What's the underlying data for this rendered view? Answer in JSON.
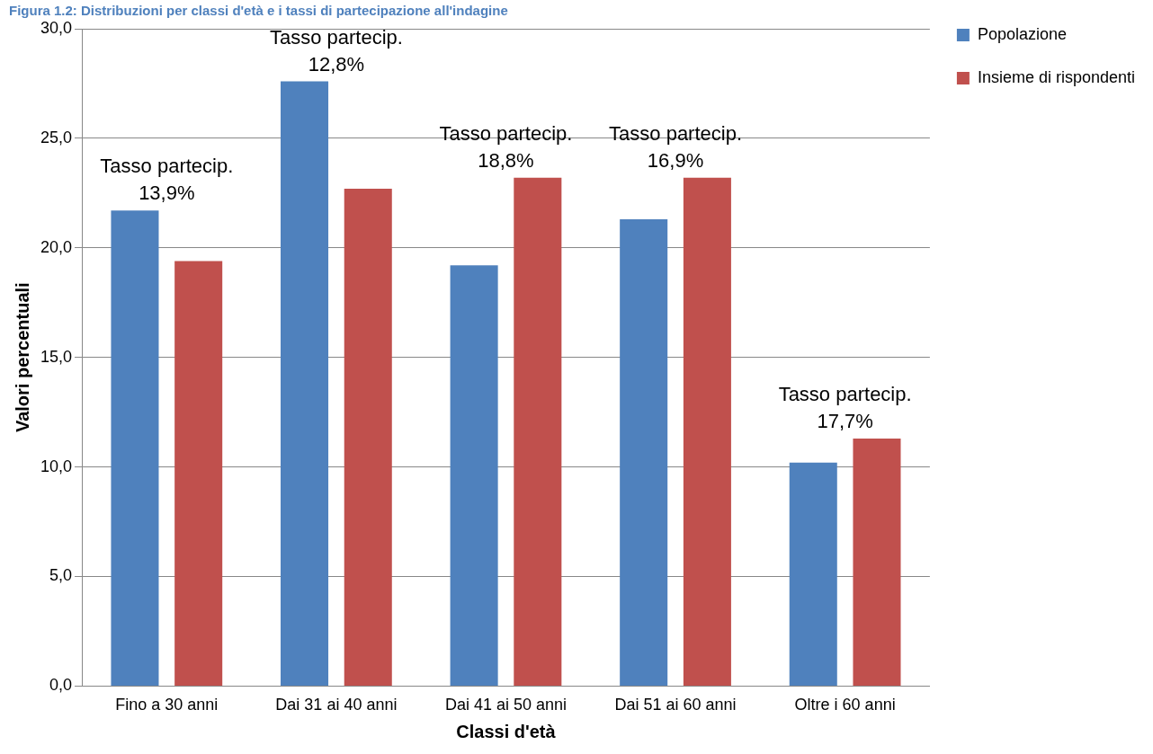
{
  "chart_data": {
    "type": "bar",
    "title": "Figura 1.2: Distribuzioni per classi d'età e i tassi di partecipazione all'indagine",
    "xlabel": "Classi d'età",
    "ylabel": "Valori percentuali",
    "categories": [
      "Fino a 30 anni",
      "Dai 31 ai 40 anni",
      "Dai 41 ai 50 anni",
      "Dai 51 ai 60 anni",
      "Oltre i 60 anni"
    ],
    "series": [
      {
        "name": "Popolazione",
        "color": "#4f81bd",
        "values": [
          21.7,
          27.6,
          19.2,
          21.3,
          10.2
        ]
      },
      {
        "name": "Insieme di rispondenti",
        "color": "#c0504d",
        "values": [
          19.4,
          22.7,
          23.2,
          23.2,
          11.3
        ]
      }
    ],
    "ylim": [
      0,
      30
    ],
    "yticks": [
      {
        "value": 0,
        "label": "0,0"
      },
      {
        "value": 5,
        "label": "5,0"
      },
      {
        "value": 10,
        "label": "10,0"
      },
      {
        "value": 15,
        "label": "15,0"
      },
      {
        "value": 20,
        "label": "20,0"
      },
      {
        "value": 25,
        "label": "25,0"
      },
      {
        "value": 30,
        "label": "30,0"
      }
    ],
    "annotations": [
      "Tasso partecip.\n13,9%",
      "Tasso partecip.\n12,8%",
      "Tasso partecip.\n18,8%",
      "Tasso partecip.\n16,9%",
      "Tasso partecip.\n17,7%"
    ],
    "grid": "y",
    "legend": "right"
  }
}
